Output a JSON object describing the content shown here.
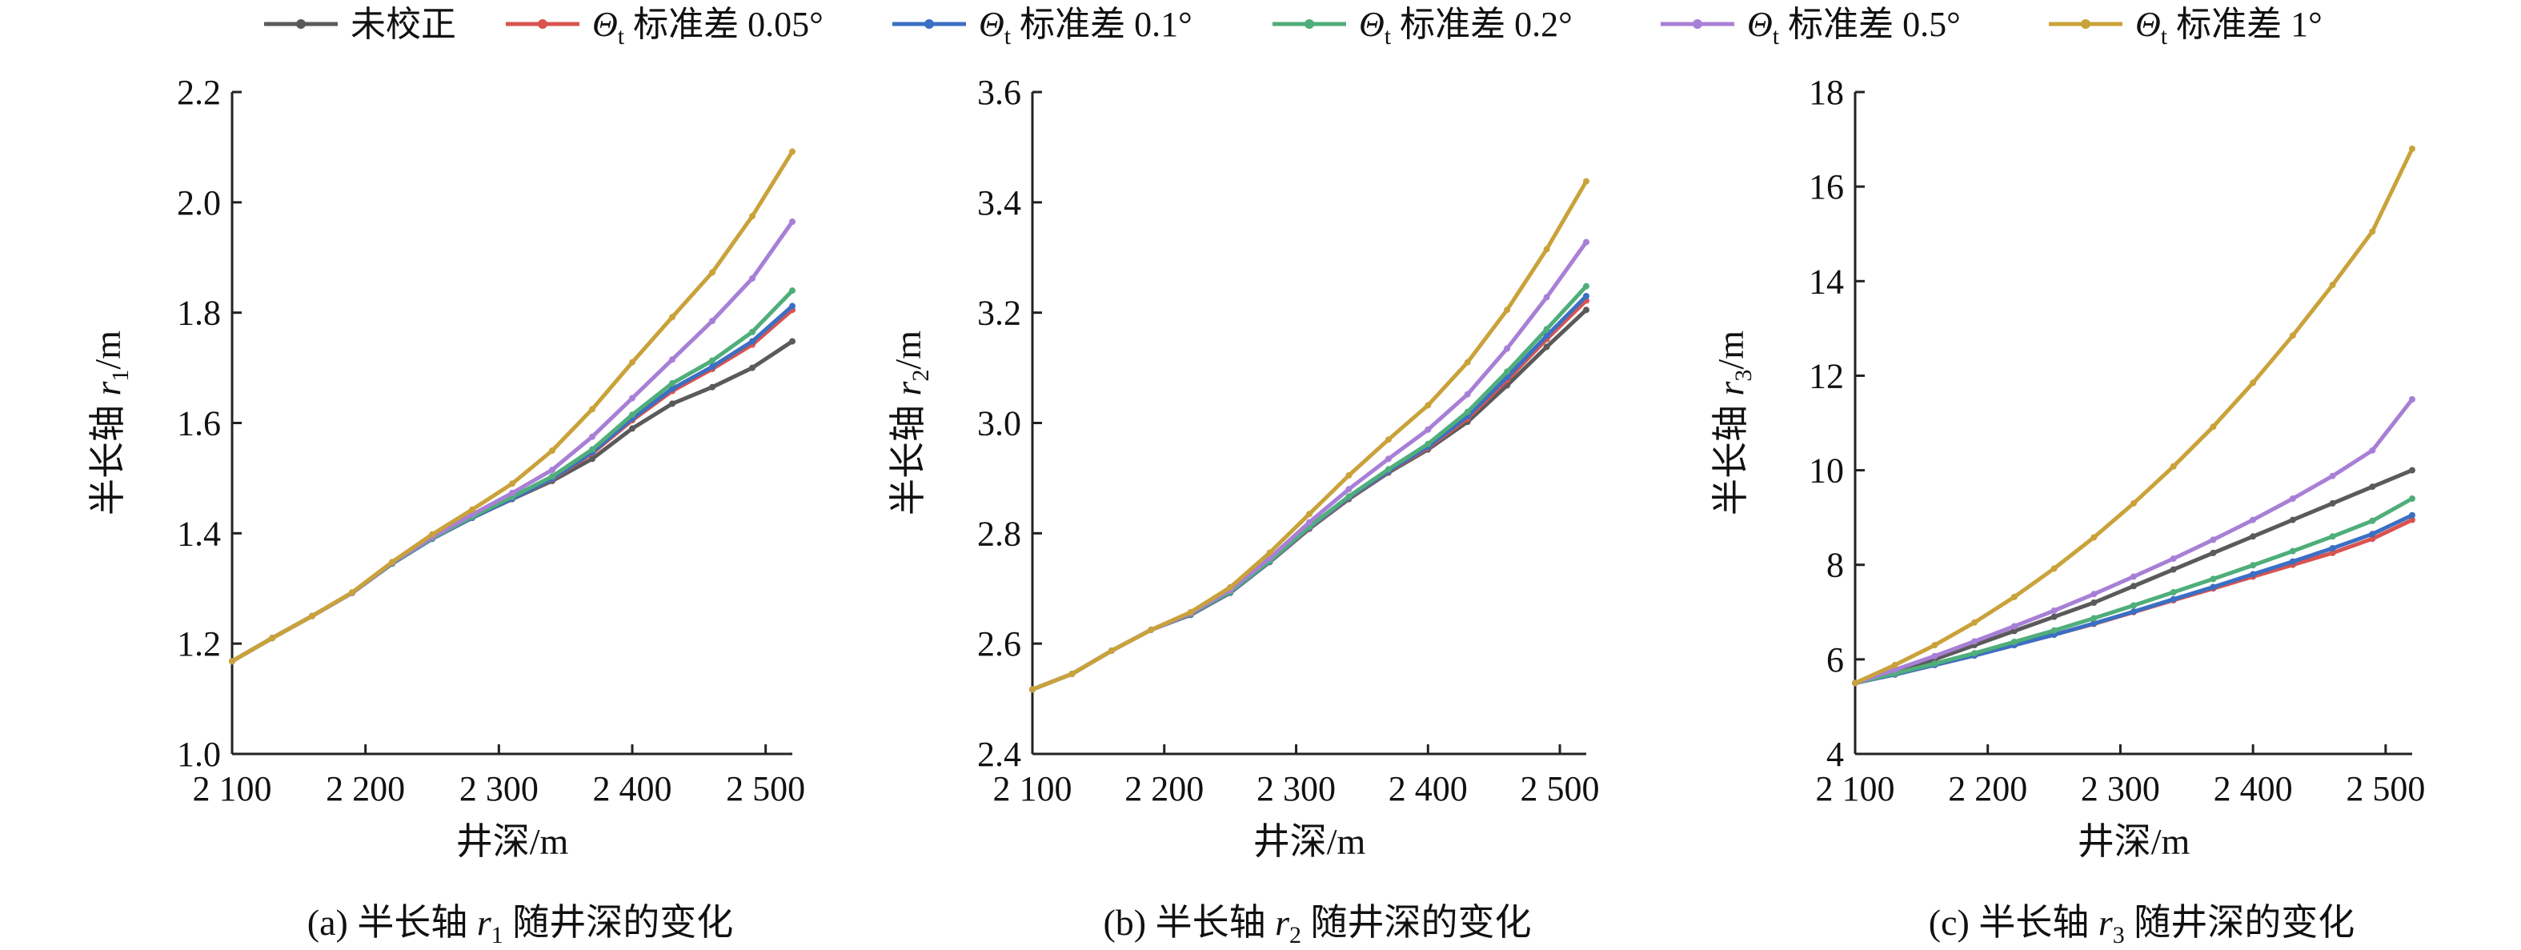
{
  "legend": [
    {
      "label": "未校正",
      "prefix": "",
      "subscript": "",
      "color": "#5a5a5a"
    },
    {
      "label": " 标准差 0.05°",
      "prefix": "Θ",
      "subscript": "t",
      "color": "#d9534f"
    },
    {
      "label": " 标准差 0.1°",
      "prefix": "Θ",
      "subscript": "t",
      "color": "#3b6fc4"
    },
    {
      "label": " 标准差 0.2°",
      "prefix": "Θ",
      "subscript": "t",
      "color": "#4fae7a"
    },
    {
      "label": " 标准差 0.5°",
      "prefix": "Θ",
      "subscript": "t",
      "color": "#a87fd6"
    },
    {
      "label": " 标准差 1°",
      "prefix": "Θ",
      "subscript": "t",
      "color": "#c9a23a"
    }
  ],
  "chart_data": [
    {
      "type": "line",
      "caption": {
        "pre": "(a) 半长轴 ",
        "var": "r",
        "sub": "1",
        "post": " 随井深的变化"
      },
      "xlabel": "井深/m",
      "ylabel": {
        "pre": "半长轴 ",
        "var": "r",
        "sub": "1",
        "post": "/m"
      },
      "xlim": [
        2100,
        2520
      ],
      "ylim": [
        1.0,
        2.2
      ],
      "xticks": [
        2100,
        2200,
        2300,
        2400,
        2500
      ],
      "xtick_labels": [
        "2 100",
        "2 200",
        "2 300",
        "2 400",
        "2 500"
      ],
      "yticks": [
        1.0,
        1.2,
        1.4,
        1.6,
        1.8,
        2.0,
        2.2
      ],
      "ytick_labels": [
        "1.0",
        "1.2",
        "1.4",
        "1.6",
        "1.8",
        "2.0",
        "2.2"
      ],
      "x": [
        2100,
        2130,
        2160,
        2190,
        2220,
        2250,
        2280,
        2310,
        2340,
        2370,
        2400,
        2430,
        2460,
        2490,
        2520
      ],
      "series": [
        {
          "name": "未校正",
          "values": [
            1.168,
            1.21,
            1.25,
            1.292,
            1.345,
            1.39,
            1.428,
            1.462,
            1.495,
            1.535,
            1.59,
            1.635,
            1.665,
            1.7,
            1.748
          ]
        },
        {
          "name": "Θt 标准差 0.05°",
          "values": [
            1.168,
            1.21,
            1.25,
            1.292,
            1.345,
            1.39,
            1.428,
            1.463,
            1.498,
            1.545,
            1.605,
            1.658,
            1.698,
            1.742,
            1.805
          ]
        },
        {
          "name": "Θt 标准差 0.1°",
          "values": [
            1.168,
            1.21,
            1.25,
            1.292,
            1.345,
            1.39,
            1.428,
            1.463,
            1.499,
            1.547,
            1.608,
            1.662,
            1.702,
            1.748,
            1.812
          ]
        },
        {
          "name": "Θt 标准差 0.2°",
          "values": [
            1.168,
            1.21,
            1.25,
            1.292,
            1.346,
            1.391,
            1.43,
            1.466,
            1.503,
            1.552,
            1.615,
            1.672,
            1.713,
            1.765,
            1.84
          ]
        },
        {
          "name": "Θt 标准差 0.5°",
          "values": [
            1.168,
            1.21,
            1.25,
            1.292,
            1.347,
            1.393,
            1.434,
            1.473,
            1.515,
            1.575,
            1.645,
            1.715,
            1.785,
            1.862,
            1.965
          ]
        },
        {
          "name": "Θt 标准差 1°",
          "values": [
            1.168,
            1.21,
            1.25,
            1.293,
            1.348,
            1.398,
            1.443,
            1.49,
            1.55,
            1.625,
            1.71,
            1.792,
            1.873,
            1.975,
            2.092
          ]
        }
      ]
    },
    {
      "type": "line",
      "caption": {
        "pre": "(b) 半长轴 ",
        "var": "r",
        "sub": "2",
        "post": " 随井深的变化"
      },
      "xlabel": "井深/m",
      "ylabel": {
        "pre": "半长轴 ",
        "var": "r",
        "sub": "2",
        "post": "/m"
      },
      "xlim": [
        2100,
        2520
      ],
      "ylim": [
        2.4,
        3.6
      ],
      "xticks": [
        2100,
        2200,
        2300,
        2400,
        2500
      ],
      "xtick_labels": [
        "2 100",
        "2 200",
        "2 300",
        "2 400",
        "2 500"
      ],
      "yticks": [
        2.4,
        2.6,
        2.8,
        3.0,
        3.2,
        3.4,
        3.6
      ],
      "ytick_labels": [
        "2.4",
        "2.6",
        "2.8",
        "3.0",
        "3.2",
        "3.4",
        "3.6"
      ],
      "x": [
        2100,
        2130,
        2160,
        2190,
        2220,
        2250,
        2280,
        2310,
        2340,
        2370,
        2400,
        2430,
        2460,
        2490,
        2520
      ],
      "series": [
        {
          "name": "未校正",
          "values": [
            2.517,
            2.545,
            2.587,
            2.625,
            2.652,
            2.692,
            2.748,
            2.808,
            2.862,
            2.91,
            2.952,
            3.002,
            3.068,
            3.138,
            3.205
          ]
        },
        {
          "name": "Θt 标准差 0.05°",
          "values": [
            2.517,
            2.545,
            2.587,
            2.625,
            2.653,
            2.693,
            2.749,
            2.809,
            2.864,
            2.912,
            2.955,
            3.008,
            3.078,
            3.152,
            3.222
          ]
        },
        {
          "name": "Θt 标准差 0.1°",
          "values": [
            2.517,
            2.545,
            2.587,
            2.625,
            2.653,
            2.693,
            2.749,
            2.81,
            2.865,
            2.913,
            2.957,
            3.012,
            3.083,
            3.158,
            3.23
          ]
        },
        {
          "name": "Θt 标准差 0.2°",
          "values": [
            2.517,
            2.545,
            2.587,
            2.625,
            2.654,
            2.694,
            2.75,
            2.812,
            2.867,
            2.916,
            2.962,
            3.02,
            3.093,
            3.17,
            3.248
          ]
        },
        {
          "name": "Θt 标准差 0.5°",
          "values": [
            2.517,
            2.545,
            2.587,
            2.625,
            2.655,
            2.697,
            2.755,
            2.82,
            2.88,
            2.935,
            2.988,
            3.052,
            3.135,
            3.228,
            3.328
          ]
        },
        {
          "name": "Θt 标准差 1°",
          "values": [
            2.517,
            2.545,
            2.587,
            2.625,
            2.657,
            2.702,
            2.765,
            2.835,
            2.905,
            2.97,
            3.032,
            3.11,
            3.205,
            3.315,
            3.438
          ]
        }
      ]
    },
    {
      "type": "line",
      "caption": {
        "pre": "(c) 半长轴 ",
        "var": "r",
        "sub": "3",
        "post": " 随井深的变化"
      },
      "xlabel": "井深/m",
      "ylabel": {
        "pre": "半长轴 ",
        "var": "r",
        "sub": "3",
        "post": "/m"
      },
      "xlim": [
        2100,
        2520
      ],
      "ylim": [
        4,
        18
      ],
      "xticks": [
        2100,
        2200,
        2300,
        2400,
        2500
      ],
      "xtick_labels": [
        "2 100",
        "2 200",
        "2 300",
        "2 400",
        "2 500"
      ],
      "yticks": [
        4,
        6,
        8,
        10,
        12,
        14,
        16,
        18
      ],
      "ytick_labels": [
        "4",
        "6",
        "8",
        "10",
        "12",
        "14",
        "16",
        "18"
      ],
      "x": [
        2100,
        2130,
        2160,
        2190,
        2220,
        2250,
        2280,
        2310,
        2340,
        2370,
        2400,
        2430,
        2460,
        2490,
        2520
      ],
      "series": [
        {
          "name": "未校正",
          "values": [
            5.5,
            5.75,
            6.0,
            6.3,
            6.6,
            6.9,
            7.2,
            7.55,
            7.9,
            8.25,
            8.6,
            8.95,
            9.3,
            9.65,
            10.0
          ]
        },
        {
          "name": "Θt 标准差 0.05°",
          "values": [
            5.5,
            5.68,
            5.88,
            6.08,
            6.3,
            6.52,
            6.75,
            7.0,
            7.25,
            7.5,
            7.75,
            8.0,
            8.25,
            8.55,
            8.95
          ]
        },
        {
          "name": "Θt 标准差 0.1°",
          "values": [
            5.5,
            5.68,
            5.88,
            6.08,
            6.3,
            6.52,
            6.76,
            7.01,
            7.27,
            7.53,
            7.8,
            8.07,
            8.35,
            8.65,
            9.05
          ]
        },
        {
          "name": "Θt 标准差 0.2°",
          "values": [
            5.5,
            5.7,
            5.91,
            6.13,
            6.37,
            6.61,
            6.87,
            7.14,
            7.42,
            7.7,
            7.99,
            8.29,
            8.6,
            8.93,
            9.4
          ]
        },
        {
          "name": "Θt 标准差 0.5°",
          "values": [
            5.5,
            5.78,
            6.07,
            6.38,
            6.7,
            7.03,
            7.38,
            7.75,
            8.13,
            8.53,
            8.95,
            9.4,
            9.88,
            10.42,
            11.5
          ]
        },
        {
          "name": "Θt 标准差 1°",
          "values": [
            5.5,
            5.88,
            6.3,
            6.78,
            7.32,
            7.92,
            8.58,
            9.3,
            10.08,
            10.92,
            11.85,
            12.85,
            13.92,
            15.05,
            16.8
          ]
        }
      ]
    }
  ]
}
